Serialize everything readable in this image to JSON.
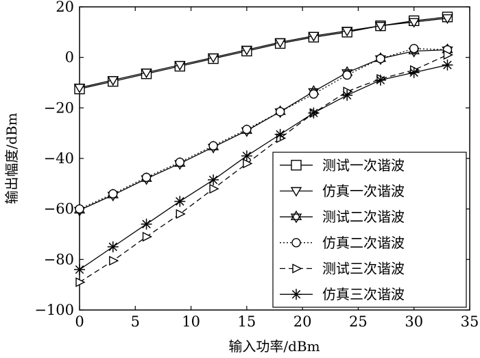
{
  "chart_data": {
    "type": "line",
    "xlabel": "输入功率/dBm",
    "ylabel": "输出幅度/dBm",
    "xlim": [
      0,
      35
    ],
    "ylim": [
      -100,
      20
    ],
    "xticks": [
      0,
      5,
      10,
      15,
      20,
      25,
      30,
      35
    ],
    "yticks": [
      -100,
      -80,
      -60,
      -40,
      -20,
      0,
      20
    ],
    "grid": false,
    "legend_position": "bottom-right",
    "x": [
      0,
      3,
      6,
      9,
      12,
      15,
      18,
      21,
      24,
      27,
      30,
      33
    ],
    "series": [
      {
        "name": "测试一次谐波",
        "marker": "square",
        "line_style": "solid",
        "values": [
          -12.5,
          -9.5,
          -6.5,
          -3.5,
          -0.5,
          2.5,
          5.5,
          8.0,
          10.0,
          12.5,
          14.5,
          16.0
        ]
      },
      {
        "name": "仿真一次谐波",
        "marker": "triangle-down",
        "line_style": "solid",
        "values": [
          -12.0,
          -9.0,
          -6.0,
          -3.0,
          0.0,
          3.0,
          6.0,
          8.5,
          10.5,
          12.5,
          14.0,
          15.5
        ]
      },
      {
        "name": "测试二次谐波",
        "marker": "star6",
        "line_style": "solid",
        "values": [
          -60.5,
          -54.5,
          -48.0,
          -42.0,
          -35.5,
          -29.0,
          -21.5,
          -13.5,
          -6.0,
          -0.5,
          2.5,
          3.0
        ]
      },
      {
        "name": "仿真二次谐波",
        "marker": "circle",
        "line_style": "dotted",
        "values": [
          -60.0,
          -54.0,
          -47.5,
          -41.5,
          -35.0,
          -28.5,
          -21.5,
          -14.5,
          -7.0,
          -0.5,
          3.5,
          3.0
        ]
      },
      {
        "name": "测试三次谐波",
        "marker": "triangle-right",
        "line_style": "dashed",
        "values": [
          -89.0,
          -80.5,
          -71.0,
          -62.0,
          -52.0,
          -42.0,
          -32.0,
          -22.0,
          -13.5,
          -8.5,
          -5.0,
          1.0
        ]
      },
      {
        "name": "仿真三次谐波",
        "marker": "asterisk",
        "line_style": "solid",
        "values": [
          -84.0,
          -75.0,
          -66.0,
          -57.0,
          -48.5,
          -39.0,
          -30.5,
          -22.0,
          -15.0,
          -9.0,
          -6.0,
          -3.0
        ]
      }
    ]
  }
}
